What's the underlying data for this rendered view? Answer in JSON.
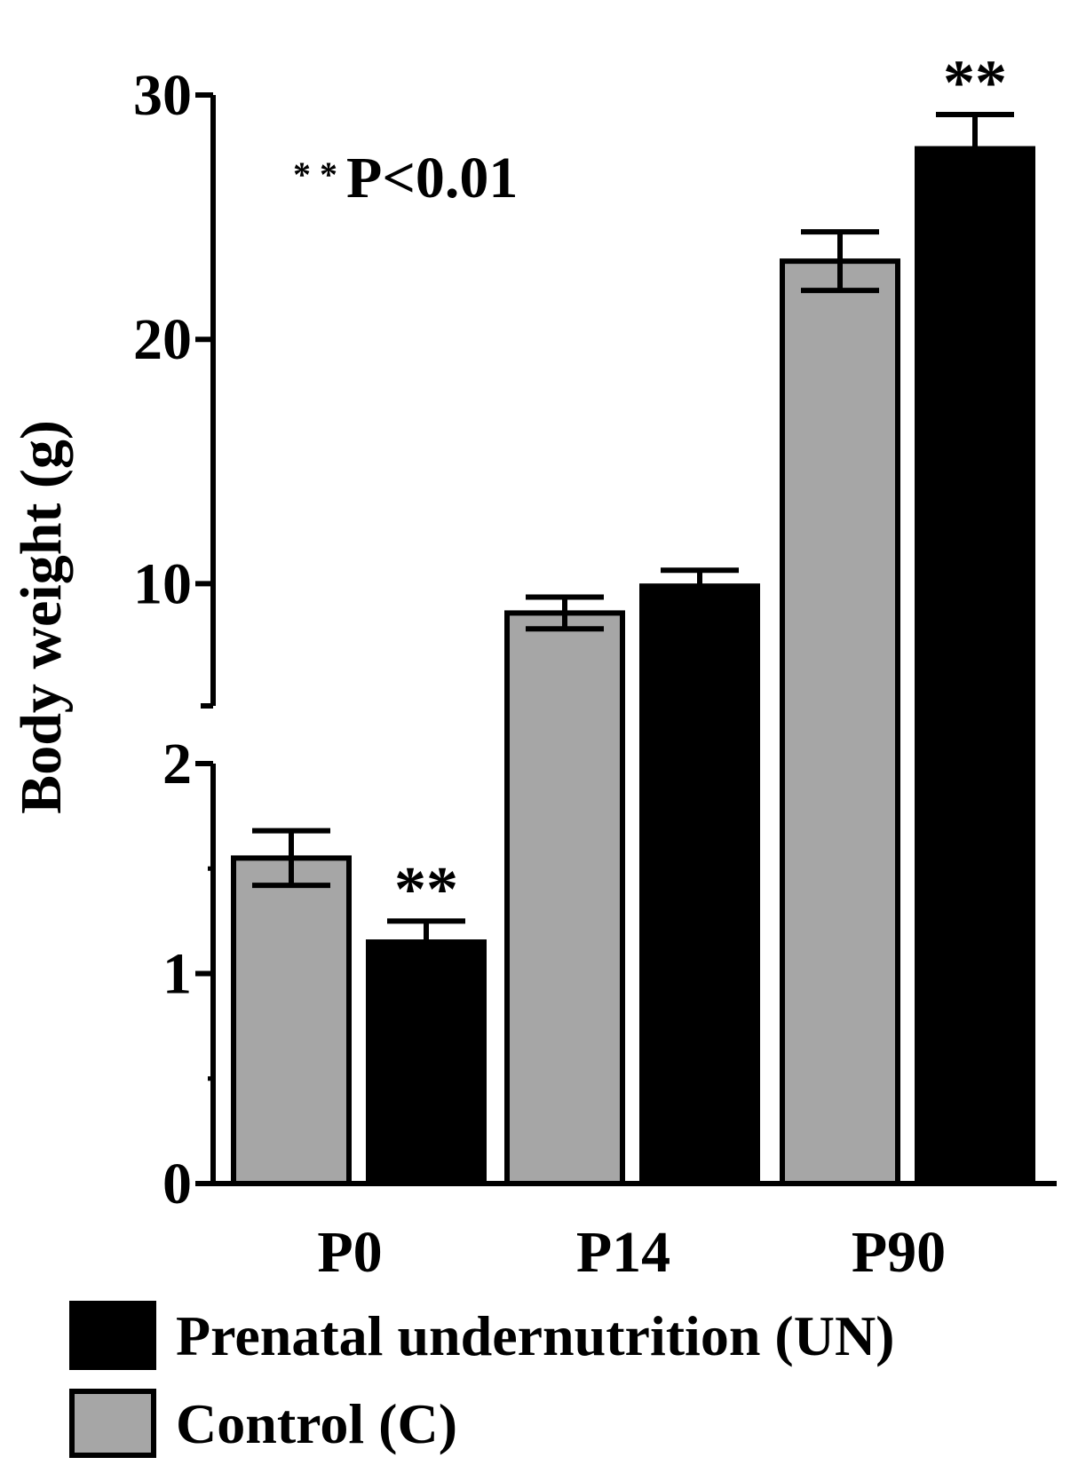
{
  "chart_data": {
    "type": "bar",
    "title": "",
    "xlabel": "",
    "ylabel": "Body weight (g)",
    "categories": [
      "P0",
      "P14",
      "P90"
    ],
    "axis": {
      "broken": true,
      "lower_ticks": [
        0,
        1,
        2
      ],
      "upper_ticks": [
        10,
        20,
        30
      ],
      "lower_range": [
        0,
        2.2
      ],
      "upper_range": [
        5,
        30
      ]
    },
    "series": [
      {
        "name": "Control (C)",
        "color": "#a6a6a6",
        "values": [
          1.55,
          8.8,
          23.2
        ],
        "errors": [
          0.13,
          0.65,
          1.2
        ],
        "significance": [
          "",
          "",
          ""
        ]
      },
      {
        "name": "Prenatal undernutrition (UN)",
        "color": "#000000",
        "values": [
          1.15,
          9.9,
          27.8
        ],
        "errors": [
          0.1,
          0.65,
          1.4
        ],
        "significance": [
          "**",
          "",
          "**"
        ]
      }
    ],
    "annotation": "* * P<0.01",
    "legend": {
      "placement": "bottom",
      "order": [
        "Prenatal undernutrition (UN)",
        "Control (C)"
      ]
    },
    "grid": false
  }
}
